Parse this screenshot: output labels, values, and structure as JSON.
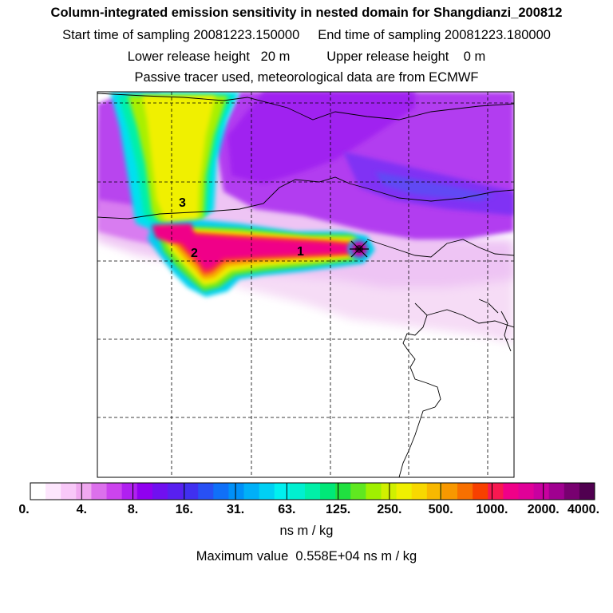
{
  "header": {
    "title": "Column-integrated emission sensitivity in nested domain for Shangdianzi_200812",
    "line2": "Start time of sampling 20081223.150000     End time of sampling 20081223.180000",
    "line3": "Lower release height   20 m          Upper release height    0 m",
    "line4": "Passive tracer used, meteorological data are from ECMWF"
  },
  "map": {
    "markers": [
      {
        "label": "1"
      },
      {
        "label": "2"
      },
      {
        "label": "3"
      }
    ]
  },
  "colorbar": {
    "labels": [
      "0.",
      "4.",
      "8.",
      "16.",
      "31.",
      "63.",
      "125.",
      "250.",
      "500.",
      "1000.",
      "2000.",
      "4000."
    ],
    "colors": [
      "#ffffff",
      "#fde6fd",
      "#f8c8f8",
      "#f0a8f0",
      "#dc70ec",
      "#cc44ee",
      "#b020f0",
      "#9000f0",
      "#7010f0",
      "#5820f0",
      "#4030f0",
      "#2850f4",
      "#1070f8",
      "#0090f8",
      "#00b0f8",
      "#00d0f4",
      "#00f0f0",
      "#00f0d0",
      "#00f0a8",
      "#00e878",
      "#20e040",
      "#60e820",
      "#a0f000",
      "#d0f000",
      "#f0f000",
      "#f8d800",
      "#f8b800",
      "#f89800",
      "#f87000",
      "#f84000",
      "#f81850",
      "#f00088",
      "#e00098",
      "#c800a0",
      "#a00090",
      "#780070",
      "#500050"
    ],
    "units": "ns m / kg",
    "max_value": "Maximum value  0.558E+04 ns m / kg"
  }
}
